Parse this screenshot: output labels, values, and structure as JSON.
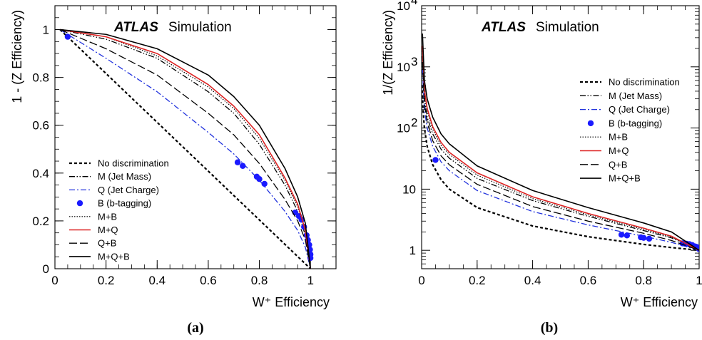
{
  "chart_data": [
    {
      "panel": "(a)",
      "type": "line",
      "title_bold": "ATLAS",
      "title_rest": "Simulation",
      "xlabel": "W⁺ Efficiency",
      "ylabel": "1 - (Z Efficiency)",
      "xlim": [
        0,
        1.1
      ],
      "ylim": [
        0,
        1.1
      ],
      "yscale": "linear",
      "x_ticks": [
        {
          "v": 0,
          "label": "0"
        },
        {
          "v": 0.2,
          "label": "0.2"
        },
        {
          "v": 0.4,
          "label": "0.4"
        },
        {
          "v": 0.6,
          "label": "0.6"
        },
        {
          "v": 0.8,
          "label": "0.8"
        },
        {
          "v": 1,
          "label": "1"
        }
      ],
      "y_ticks": [
        {
          "v": 0,
          "label": "0"
        },
        {
          "v": 0.2,
          "label": "0.2"
        },
        {
          "v": 0.4,
          "label": "0.4"
        },
        {
          "v": 0.6,
          "label": "0.6"
        },
        {
          "v": 0.8,
          "label": "0.8"
        },
        {
          "v": 1,
          "label": "1"
        }
      ],
      "legend_position": "lower-left",
      "grid": false,
      "series": [
        {
          "name": "No discrimination",
          "key": "none",
          "color": "#000000",
          "style": "dash",
          "x": [
            0.02,
            1.0
          ],
          "y": [
            1.0,
            0.0
          ]
        },
        {
          "name": "M (Jet Mass)",
          "key": "m",
          "color": "#000000",
          "style": "dashdotdot",
          "x": [
            0.02,
            0.2,
            0.4,
            0.6,
            0.7,
            0.8,
            0.9,
            0.95,
            0.98,
            1.0
          ],
          "y": [
            1.0,
            0.96,
            0.88,
            0.74,
            0.65,
            0.52,
            0.35,
            0.24,
            0.14,
            0.0
          ]
        },
        {
          "name": "Q (Jet Charge)",
          "key": "q",
          "color": "#2233dd",
          "style": "dashdot",
          "x": [
            0.02,
            0.2,
            0.4,
            0.6,
            0.7,
            0.8,
            0.9,
            0.95,
            0.98,
            1.0
          ],
          "y": [
            1.0,
            0.88,
            0.74,
            0.57,
            0.48,
            0.37,
            0.24,
            0.16,
            0.09,
            0.0
          ]
        },
        {
          "name": "B (b-tagging)",
          "key": "b",
          "color": "#1a1aff",
          "style": "markers",
          "x": [
            0.05,
            0.715,
            0.735,
            0.79,
            0.8,
            0.82,
            0.94,
            0.955,
            0.965,
            0.975,
            0.985,
            0.99,
            0.995,
            0.998,
            1.0,
            1.0
          ],
          "y": [
            0.97,
            0.445,
            0.43,
            0.385,
            0.375,
            0.355,
            0.235,
            0.22,
            0.205,
            0.175,
            0.14,
            0.12,
            0.1,
            0.08,
            0.06,
            0.045
          ]
        },
        {
          "name": "M+B",
          "key": "mb",
          "color": "#000000",
          "style": "dot",
          "x": [
            0.02,
            0.2,
            0.4,
            0.6,
            0.7,
            0.8,
            0.9,
            0.95,
            0.98,
            1.0
          ],
          "y": [
            1.0,
            0.97,
            0.89,
            0.76,
            0.67,
            0.545,
            0.37,
            0.26,
            0.16,
            0.0
          ]
        },
        {
          "name": "M+Q",
          "key": "mq",
          "color": "#dd2222",
          "style": "solid",
          "x": [
            0.02,
            0.2,
            0.4,
            0.6,
            0.7,
            0.8,
            0.9,
            0.95,
            0.98,
            1.0
          ],
          "y": [
            1.0,
            0.97,
            0.9,
            0.77,
            0.68,
            0.56,
            0.38,
            0.27,
            0.16,
            0.0
          ]
        },
        {
          "name": "Q+B",
          "key": "qb",
          "color": "#000000",
          "style": "longdash",
          "x": [
            0.02,
            0.2,
            0.4,
            0.6,
            0.7,
            0.8,
            0.9,
            0.95,
            0.98,
            1.0
          ],
          "y": [
            1.0,
            0.92,
            0.81,
            0.65,
            0.56,
            0.44,
            0.29,
            0.2,
            0.12,
            0.0
          ]
        },
        {
          "name": "M+Q+B",
          "key": "mqb",
          "color": "#000000",
          "style": "solid",
          "x": [
            0.02,
            0.2,
            0.4,
            0.6,
            0.7,
            0.8,
            0.9,
            0.95,
            0.98,
            1.0
          ],
          "y": [
            1.0,
            0.98,
            0.92,
            0.81,
            0.72,
            0.6,
            0.42,
            0.3,
            0.19,
            0.0
          ]
        }
      ]
    },
    {
      "panel": "(b)",
      "type": "line",
      "title_bold": "ATLAS",
      "title_rest": "Simulation",
      "xlabel": "W⁺ Efficiency",
      "ylabel": "1/(Z Efficiency)",
      "xlim": [
        0,
        1.0
      ],
      "ylim": [
        0.5,
        10000
      ],
      "yscale": "log",
      "x_ticks": [
        {
          "v": 0,
          "label": "0"
        },
        {
          "v": 0.2,
          "label": "0.2"
        },
        {
          "v": 0.4,
          "label": "0.4"
        },
        {
          "v": 0.6,
          "label": "0.6"
        },
        {
          "v": 0.8,
          "label": "0.8"
        },
        {
          "v": 1,
          "label": "1"
        }
      ],
      "y_ticks": [
        {
          "v": 1,
          "label": "1"
        },
        {
          "v": 10,
          "label": "10"
        },
        {
          "v": 100,
          "base": "10",
          "exp": "2"
        },
        {
          "v": 1000,
          "base": "10",
          "exp": "3"
        },
        {
          "v": 10000,
          "base": "10",
          "exp": "4"
        }
      ],
      "legend_position": "upper-right",
      "grid": false,
      "series": [
        {
          "name": "No discrimination",
          "key": "none",
          "color": "#000000",
          "style": "dash",
          "x": [
            0.002,
            0.005,
            0.01,
            0.02,
            0.04,
            0.07,
            0.1,
            0.2,
            0.4,
            0.6,
            0.8,
            0.9,
            1.0
          ],
          "y": [
            500,
            200,
            100,
            50,
            25,
            14.3,
            10,
            5,
            2.5,
            1.67,
            1.25,
            1.11,
            1.0
          ]
        },
        {
          "name": "M (Jet Mass)",
          "key": "m",
          "color": "#000000",
          "style": "dashdotdot",
          "x": [
            0.003,
            0.01,
            0.02,
            0.04,
            0.07,
            0.1,
            0.2,
            0.4,
            0.6,
            0.8,
            0.9,
            1.0
          ],
          "y": [
            1500,
            300,
            150,
            80,
            45,
            32,
            15,
            6.5,
            3.6,
            2.1,
            1.6,
            1.0
          ]
        },
        {
          "name": "Q (Jet Charge)",
          "key": "q",
          "color": "#2233dd",
          "style": "dashdot",
          "x": [
            0.003,
            0.01,
            0.02,
            0.04,
            0.07,
            0.1,
            0.2,
            0.4,
            0.6,
            0.8,
            0.9,
            1.0
          ],
          "y": [
            900,
            200,
            100,
            50,
            28,
            20,
            9.5,
            4.3,
            2.6,
            1.7,
            1.35,
            1.0
          ]
        },
        {
          "name": "B (b-tagging)",
          "key": "b",
          "color": "#1a1aff",
          "style": "markers",
          "x": [
            0.05,
            0.72,
            0.74,
            0.79,
            0.8,
            0.82,
            0.94,
            0.955,
            0.965,
            0.975,
            0.985,
            0.99,
            0.995,
            0.998,
            1.0
          ],
          "y": [
            30,
            1.8,
            1.75,
            1.63,
            1.6,
            1.55,
            1.3,
            1.28,
            1.26,
            1.22,
            1.16,
            1.14,
            1.11,
            1.08,
            1.05
          ]
        },
        {
          "name": "M+B",
          "key": "mb",
          "color": "#000000",
          "style": "dot",
          "x": [
            0.003,
            0.01,
            0.02,
            0.04,
            0.07,
            0.1,
            0.2,
            0.4,
            0.6,
            0.8,
            0.9,
            1.0
          ],
          "y": [
            2000,
            380,
            190,
            95,
            52,
            37,
            17,
            7,
            3.8,
            2.2,
            1.65,
            1.0
          ]
        },
        {
          "name": "M+Q",
          "key": "mq",
          "color": "#dd2222",
          "style": "solid",
          "x": [
            0.003,
            0.01,
            0.02,
            0.04,
            0.07,
            0.1,
            0.2,
            0.4,
            0.6,
            0.8,
            0.9,
            1.0
          ],
          "y": [
            2200,
            420,
            210,
            105,
            58,
            40,
            18.5,
            7.5,
            4.0,
            2.3,
            1.7,
            1.0
          ]
        },
        {
          "name": "Q+B",
          "key": "qb",
          "color": "#000000",
          "style": "longdash",
          "x": [
            0.003,
            0.01,
            0.02,
            0.04,
            0.07,
            0.1,
            0.2,
            0.4,
            0.6,
            0.8,
            0.9,
            1.0
          ],
          "y": [
            1200,
            250,
            125,
            62,
            35,
            25,
            12,
            5.2,
            3.0,
            1.9,
            1.45,
            1.0
          ]
        },
        {
          "name": "M+Q+B",
          "key": "mqb",
          "color": "#000000",
          "style": "solid",
          "x": [
            0.003,
            0.01,
            0.02,
            0.04,
            0.07,
            0.1,
            0.2,
            0.4,
            0.6,
            0.8,
            0.9,
            1.0
          ],
          "y": [
            3500,
            600,
            300,
            150,
            80,
            55,
            24,
            9.5,
            5.0,
            2.8,
            2.0,
            1.0
          ]
        }
      ]
    }
  ]
}
